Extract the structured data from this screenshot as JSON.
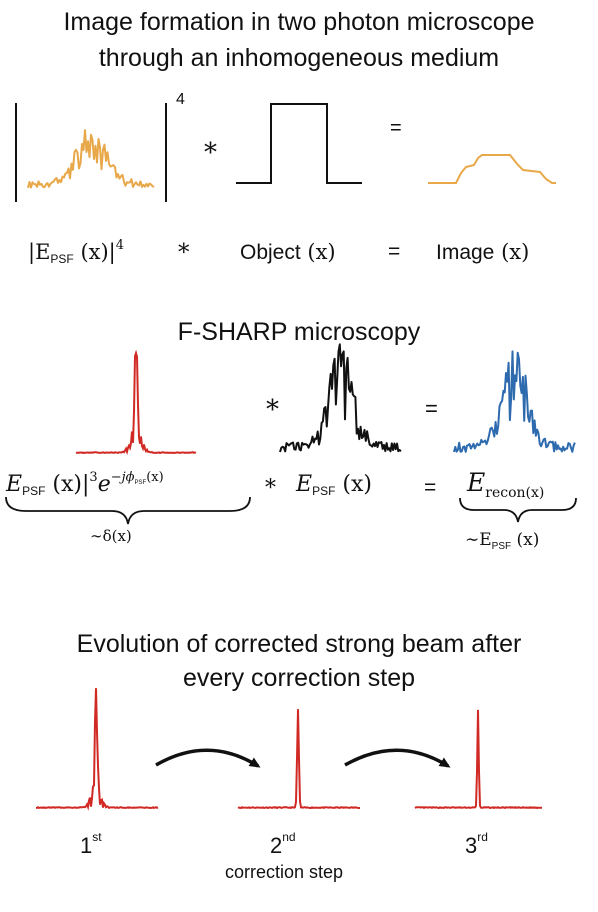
{
  "section1": {
    "title_line1": "Image formation in two photon microscope",
    "title_line2": "through an inhomogeneous medium",
    "exponent": "4",
    "conv_symbol": "*",
    "equals_symbol": "=",
    "eq_lhs_prefix": "|E",
    "eq_lhs_sub": "PSF",
    "eq_lhs_arg": "(x)|",
    "eq_lhs_pow": "4",
    "object_text": "Object",
    "object_arg": "(x)",
    "image_text": "Image",
    "image_arg": "(x)"
  },
  "section2": {
    "title": "F-SHARP microscopy",
    "conv_symbol": "*",
    "equals_symbol": "=",
    "eq_left_E": "E",
    "eq_left_sub": "PSF",
    "eq_left_arg": "(x)|",
    "eq_left_pow": "3",
    "eq_left_exp_e": "e",
    "eq_left_exp": "−jϕ",
    "eq_left_exp_sub": "PSF",
    "eq_left_exp_arg": "(x)",
    "eq_mid_E": "E",
    "eq_mid_sub": "PSF",
    "eq_mid_arg": "(x)",
    "eq_right_E": "E",
    "eq_right_sub": "recon(x)",
    "brace_left_label": "∼δ(x)",
    "brace_right_prefix": "∼E",
    "brace_right_sub": "PSF",
    "brace_right_arg": "(x)"
  },
  "section3": {
    "title_line1": "Evolution of corrected strong beam after",
    "title_line2": "every correction step",
    "steps": [
      {
        "num": "1",
        "suffix": "st"
      },
      {
        "num": "2",
        "suffix": "nd"
      },
      {
        "num": "3",
        "suffix": "rd"
      }
    ],
    "caption": "correction step"
  },
  "colors": {
    "orange": "#E8A849",
    "red": "#D12A25",
    "blue": "#2E6AAE",
    "black": "#111111"
  }
}
